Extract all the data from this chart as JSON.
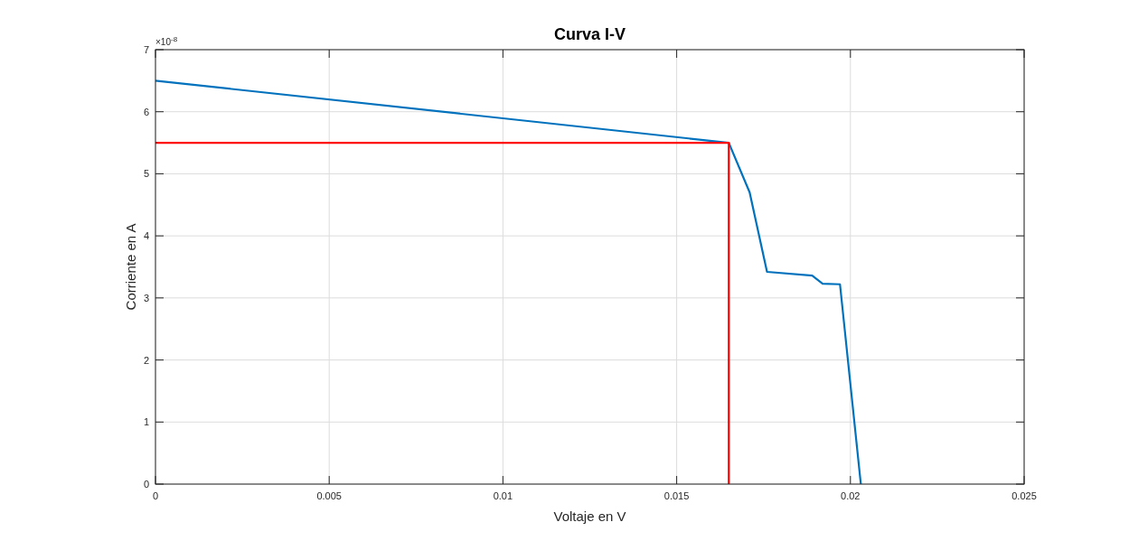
{
  "chart_data": {
    "type": "line",
    "title": "Curva I-V",
    "xlabel": "Voltaje en V",
    "ylabel": "Corriente en A",
    "annotations": [
      "×10$^{-8}$"
    ],
    "series": [
      {
        "color": "#0072bd",
        "x": [
          0,
          0.0165,
          0.0171,
          0.0176,
          0.0189,
          0.0192,
          0.0197,
          0.0203
        ],
        "values": [
          6.5,
          5.5,
          4.7,
          3.42,
          3.36,
          3.23,
          3.22,
          0
        ]
      },
      {
        "color": "#ff0000",
        "x": [
          0,
          0.0165,
          0.0165
        ],
        "values": [
          5.5,
          5.5,
          0
        ]
      }
    ],
    "xlim": [
      0,
      0.025
    ],
    "xticks": [
      0,
      0.005,
      0.01,
      0.015,
      0.02,
      0.025
    ],
    "ylim": [
      0,
      7
    ],
    "yticks": [
      0,
      1,
      2,
      3,
      4,
      5,
      6,
      7
    ],
    "grid": true,
    "marker": "none",
    "line_style": "solid"
  }
}
